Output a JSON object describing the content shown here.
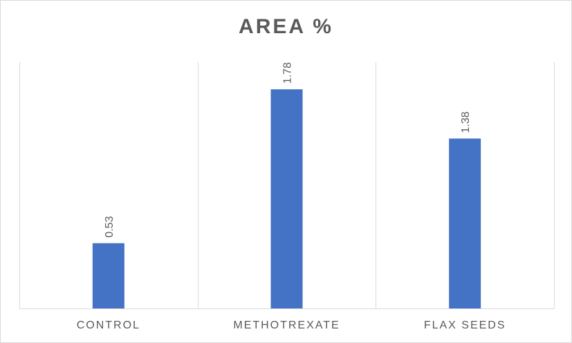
{
  "chart_data": {
    "type": "bar",
    "title": "AREA %",
    "categories": [
      "CONTROL",
      "METHOTREXATE",
      "FLAX SEEDS"
    ],
    "values": [
      0.53,
      1.78,
      1.38
    ],
    "data_labels": [
      "0.53",
      "1.78",
      "1.38"
    ],
    "xlabel": "",
    "ylabel": "",
    "ylim": [
      0,
      2.0
    ],
    "grid": "vertical category separators",
    "legend": "none",
    "bar_color": "#4472c4",
    "data_label_orientation": "vertical"
  }
}
